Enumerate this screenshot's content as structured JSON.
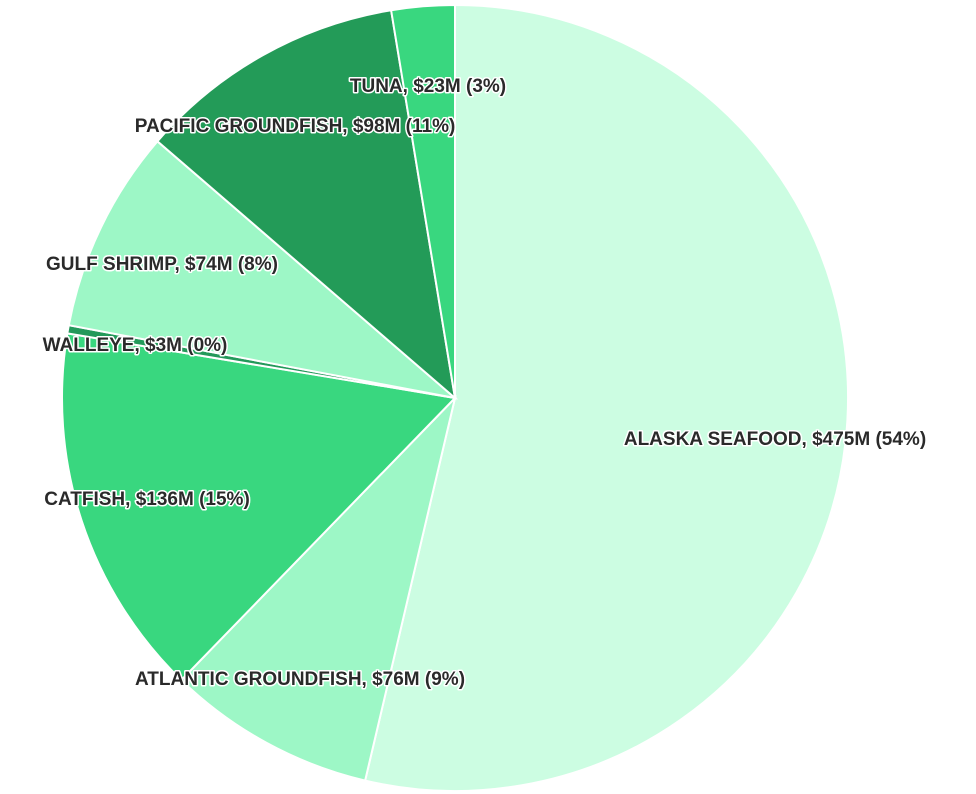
{
  "chart_data": {
    "type": "pie",
    "values": [
      475,
      76,
      136,
      3,
      74,
      98,
      23
    ],
    "value_labels": [
      "ALASKA SEAFOOD, $475M (54%)",
      "ATLANTIC GROUNDFISH, $76M (9%)",
      "CATFISH, $136M (15%)",
      "WALLEYE, $3M (0%)",
      "GULF SHRIMP, $74M (8%)",
      "PACIFIC GROUNDFISH, $98M (11%)",
      "TUNA, $23M (3%)"
    ],
    "colors": [
      "#ccfde2",
      "#9df7c6",
      "#39d77f",
      "#23995a",
      "#9df7c6",
      "#239b58",
      "#39d77f"
    ]
  }
}
